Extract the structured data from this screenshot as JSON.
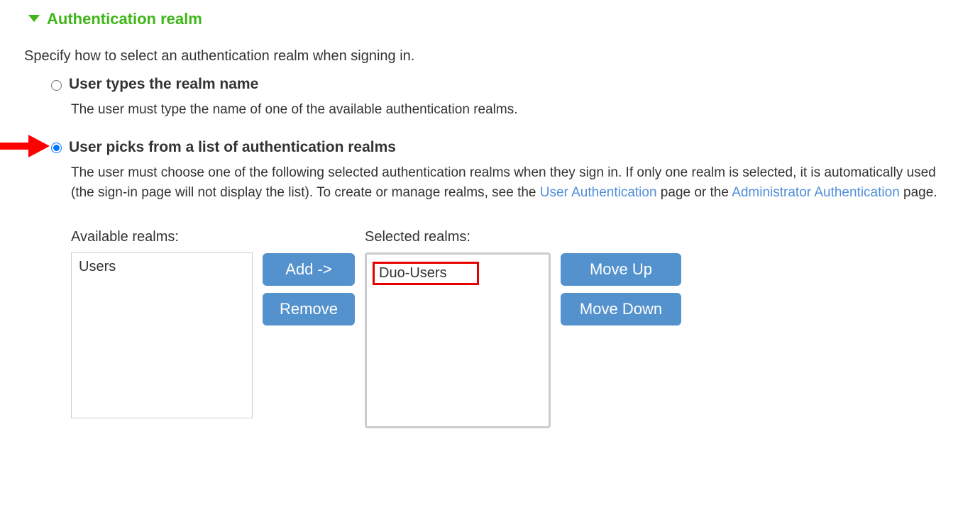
{
  "header": {
    "title": "Authentication realm",
    "color": "#3fb618"
  },
  "instruction": "Specify how to select an authentication realm when signing in.",
  "options": {
    "types": {
      "label": "User types the realm name",
      "desc": "The user must type the name of one of the available authentication realms.",
      "selected": false
    },
    "picks": {
      "label": "User picks from a list of authentication realms",
      "desc_pre": "The user must choose one of the following selected authentication realms when they sign in. If only one realm is selected, it is automatically used (the sign-in page will not display the list). To create or manage realms, see the ",
      "link1": "User Authentication",
      "desc_mid": " page or the ",
      "link2": "Administrator Authentication",
      "desc_post": " page.",
      "selected": true
    }
  },
  "realms": {
    "available_label": "Available realms:",
    "selected_label": "Selected realms:",
    "available": [
      "Users"
    ],
    "selected": [
      "Duo-Users"
    ]
  },
  "buttons": {
    "add": "Add ->",
    "remove": "Remove",
    "move_up": "Move Up",
    "move_down": "Move Down"
  },
  "colors": {
    "button_bg": "#5492cd",
    "link": "#4f8dd9",
    "highlight_border": "#e60000",
    "arrow": "#ff0000"
  }
}
